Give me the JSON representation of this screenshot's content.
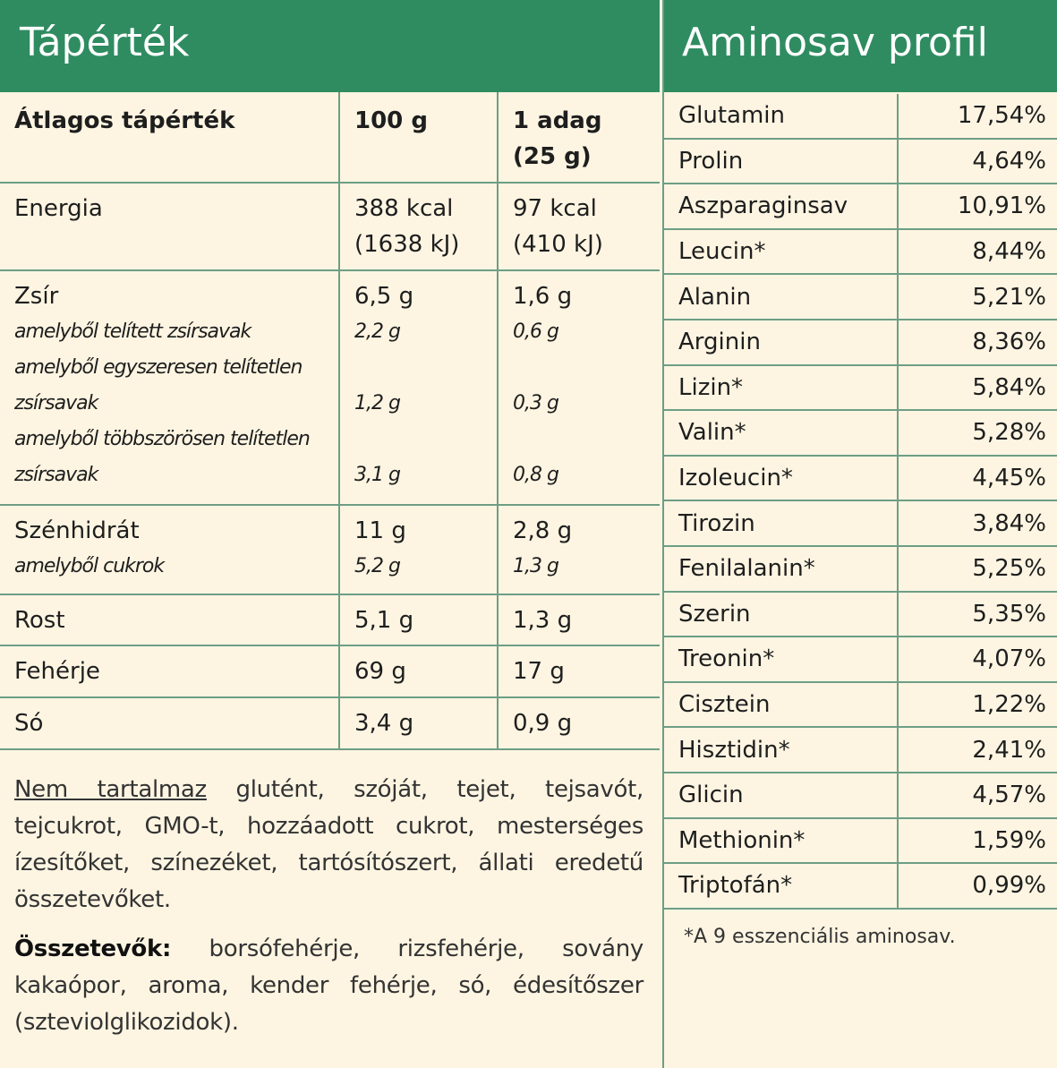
{
  "left": {
    "title": "Tápérték",
    "header": [
      [
        "Átlagos tápérték"
      ],
      [
        "100 g"
      ],
      [
        "1 adag",
        "(25 g)"
      ]
    ],
    "rows": [
      {
        "lines": [
          {
            "label": [
              "Energia"
            ],
            "values": [
              [
                "388 kcal",
                "(1638 kJ)"
              ],
              [
                "97 kcal",
                "(410 kJ)"
              ]
            ]
          }
        ]
      },
      {
        "lines": [
          {
            "label": [
              "Zsír"
            ],
            "values": [
              [
                "6,5 g"
              ],
              [
                "1,6 g"
              ]
            ]
          },
          {
            "label": [
              "amelyből telített zsírsavak"
            ],
            "values": [
              [
                "2,2 g"
              ],
              [
                "0,6 g"
              ]
            ],
            "italic": true
          },
          {
            "label": [
              "amelyből egyszeresen telítetlen",
              "zsírsavak"
            ],
            "values": [
              [
                "1,2 g"
              ],
              [
                "0,3 g"
              ]
            ],
            "italic": true
          },
          {
            "label": [
              "amelyből többszörösen telítetlen",
              "zsírsavak"
            ],
            "values": [
              [
                "3,1 g"
              ],
              [
                "0,8 g"
              ]
            ],
            "italic": true
          }
        ]
      },
      {
        "lines": [
          {
            "label": [
              "Szénhidrát"
            ],
            "values": [
              [
                "11 g"
              ],
              [
                "2,8 g"
              ]
            ]
          },
          {
            "label": [
              "amelyből cukrok"
            ],
            "values": [
              [
                "5,2 g"
              ],
              [
                "1,3 g"
              ]
            ],
            "italic": true
          }
        ]
      },
      {
        "lines": [
          {
            "label": [
              "Rost"
            ],
            "values": [
              [
                "5,1 g"
              ],
              [
                "1,3 g"
              ]
            ]
          }
        ]
      },
      {
        "lines": [
          {
            "label": [
              "Fehérje"
            ],
            "values": [
              [
                "69 g"
              ],
              [
                "17 g"
              ]
            ]
          }
        ]
      },
      {
        "lines": [
          {
            "label": [
              "Só"
            ],
            "values": [
              [
                "3,4 g"
              ],
              [
                "0,9 g"
              ]
            ]
          }
        ]
      }
    ],
    "free_from": {
      "lead": "Nem tartalmaz",
      "text": " glutént, szóját, tejet, tejsavót, tejcukrot, GMO-t, hozzáadott cukrot, mesterséges ízesítőket, színezéket, tartósítószert, állati eredetű összetevőket."
    },
    "ingredients": {
      "lead": "Összetevők:",
      "text": " borsófehérje, rizsfehérje, sovány kakaópor, aroma, kender fehérje, só, édesítőszer (szteviolglikozidok)."
    }
  },
  "right": {
    "title": "Aminosav profil",
    "rows": [
      [
        "Glutamin",
        "17,54%"
      ],
      [
        "Prolin",
        "4,64%"
      ],
      [
        "Aszparaginsav",
        "10,91%"
      ],
      [
        "Leucin*",
        "8,44%"
      ],
      [
        "Alanin",
        "5,21%"
      ],
      [
        "Arginin",
        "8,36%"
      ],
      [
        "Lizin*",
        "5,84%"
      ],
      [
        "Valin*",
        "5,28%"
      ],
      [
        "Izoleucin*",
        "4,45%"
      ],
      [
        "Tirozin",
        "3,84%"
      ],
      [
        "Fenilalanin*",
        "5,25%"
      ],
      [
        "Szerin",
        "5,35%"
      ],
      [
        "Treonin*",
        "4,07%"
      ],
      [
        "Cisztein",
        "1,22%"
      ],
      [
        "Hisztidin*",
        "2,41%"
      ],
      [
        "Glicin",
        "4,57%"
      ],
      [
        "Methionin*",
        "1,59%"
      ],
      [
        "Triptofán*",
        "0,99%"
      ]
    ],
    "footnote": "*A 9 esszenciális aminosav."
  }
}
